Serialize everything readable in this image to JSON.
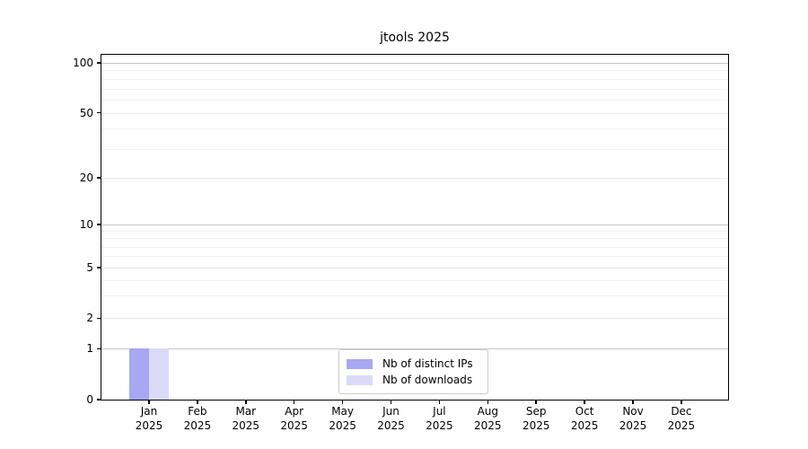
{
  "figure": {
    "background": "#ffffff",
    "axis_color": "#000000"
  },
  "chart_data": {
    "type": "bar",
    "title": "jtools 2025",
    "xlabel": "",
    "ylabel": "",
    "categories": [
      {
        "month": "Jan",
        "year": "2025"
      },
      {
        "month": "Feb",
        "year": "2025"
      },
      {
        "month": "Mar",
        "year": "2025"
      },
      {
        "month": "Apr",
        "year": "2025"
      },
      {
        "month": "May",
        "year": "2025"
      },
      {
        "month": "Jun",
        "year": "2025"
      },
      {
        "month": "Jul",
        "year": "2025"
      },
      {
        "month": "Aug",
        "year": "2025"
      },
      {
        "month": "Sep",
        "year": "2025"
      },
      {
        "month": "Oct",
        "year": "2025"
      },
      {
        "month": "Nov",
        "year": "2025"
      },
      {
        "month": "Dec",
        "year": "2025"
      }
    ],
    "series": [
      {
        "name": "Nb of distinct IPs",
        "color": "#a7a7f4",
        "values": [
          1,
          0,
          0,
          0,
          0,
          0,
          0,
          0,
          0,
          0,
          0,
          0
        ]
      },
      {
        "name": "Nb of downloads",
        "color": "#dadaf8",
        "values": [
          1,
          0,
          0,
          0,
          0,
          0,
          0,
          0,
          0,
          0,
          0,
          0
        ]
      }
    ],
    "yscale": "log-like",
    "ylim": [
      0,
      100
    ],
    "yticks_major": [
      0,
      1,
      2,
      5,
      10,
      20,
      50,
      100
    ],
    "yticks_minor": [
      3,
      4,
      6,
      7,
      8,
      9,
      30,
      40,
      60,
      70,
      80,
      90
    ],
    "grid": "horizontal",
    "legend_position": "lower center"
  },
  "grid_colors": {
    "decade": "#c7c7c7",
    "mid": "#e8e8e8",
    "minor": "#f2f2f2"
  }
}
